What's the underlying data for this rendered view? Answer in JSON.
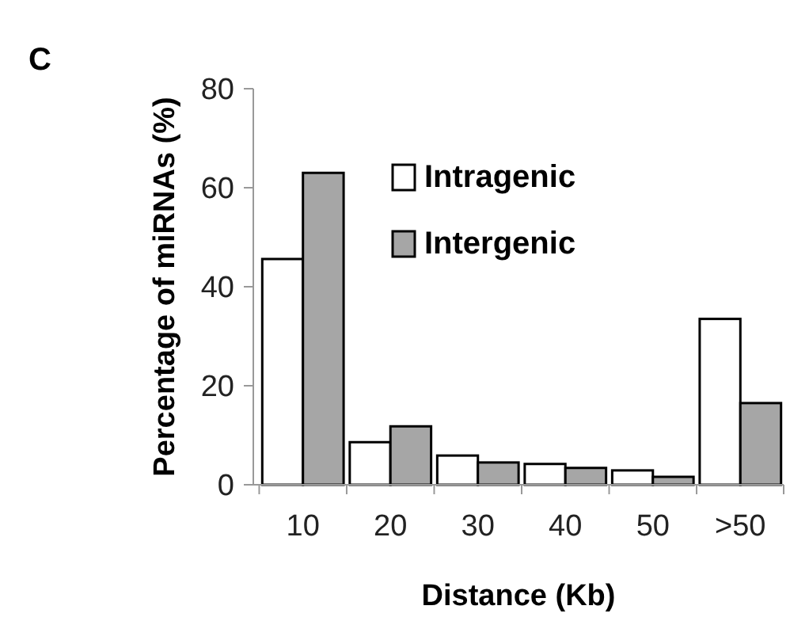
{
  "chart_data": {
    "type": "bar",
    "xlabel": "Distance (Kb)",
    "ylabel": "Percentage of miRNAs (%)",
    "annotations": [
      "C"
    ],
    "categories": [
      "10",
      "20",
      "30",
      "40",
      "50",
      ">50"
    ],
    "series": [
      {
        "name": "Intragenic",
        "color": "#ffffff",
        "values": [
          45.6,
          8.6,
          5.9,
          4.2,
          2.9,
          33.5
        ]
      },
      {
        "name": "Intergenic",
        "color": "#a6a6a6",
        "values": [
          63,
          11.8,
          4.5,
          3.4,
          1.6,
          16.5
        ]
      }
    ],
    "ylim": [
      0,
      80
    ],
    "yticks": [
      0,
      20,
      40,
      60,
      80
    ],
    "grid": false,
    "legend": "top"
  }
}
